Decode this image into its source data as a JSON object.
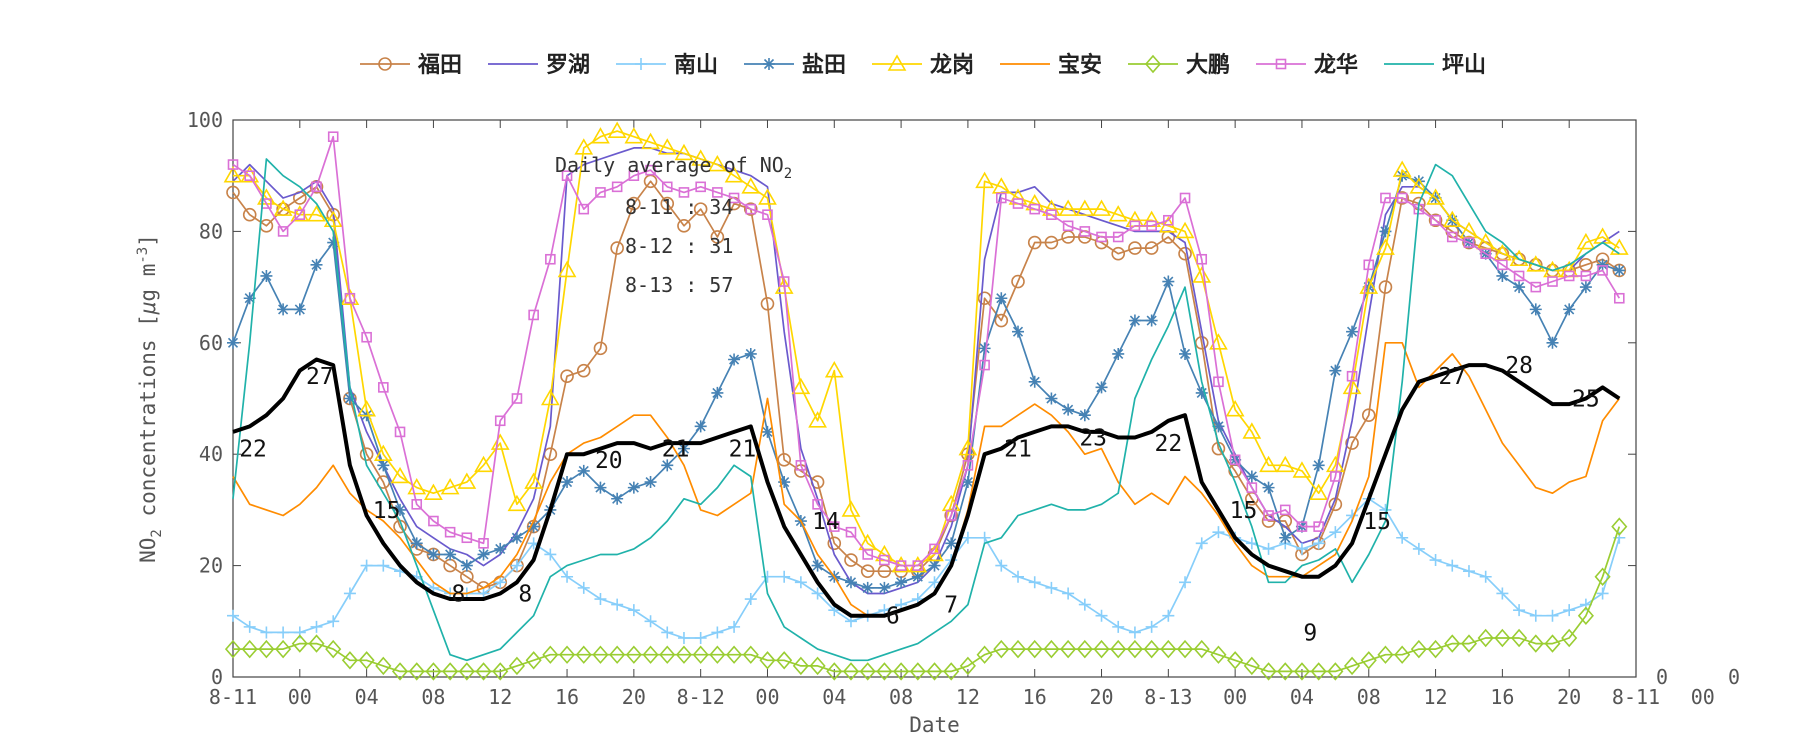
{
  "chart_data": {
    "type": "line",
    "xlabel": "Date",
    "ylabel_main": "NO",
    "ylabel_sub": "2",
    "ylabel_rest": " concentrations [",
    "ylabel_mu": "μ",
    "ylabel_unit": "g m",
    "ylabel_exp": "-3",
    "ylabel_close": "]",
    "ylim": [
      0,
      100
    ],
    "yticks": [
      0,
      20,
      40,
      60,
      80,
      100
    ],
    "xlim": [
      0,
      84
    ],
    "xticks": [
      {
        "x": 0,
        "label": "8-11"
      },
      {
        "x": 4,
        "label": "00"
      },
      {
        "x": 8,
        "label": "04"
      },
      {
        "x": 12,
        "label": "08"
      },
      {
        "x": 16,
        "label": "12"
      },
      {
        "x": 20,
        "label": "16"
      },
      {
        "x": 24,
        "label": "20"
      },
      {
        "x": 28,
        "label": "8-12"
      },
      {
        "x": 32,
        "label": "00"
      },
      {
        "x": 36,
        "label": "04"
      },
      {
        "x": 40,
        "label": "08"
      },
      {
        "x": 44,
        "label": "12"
      },
      {
        "x": 48,
        "label": "16"
      },
      {
        "x": 52,
        "label": "20"
      },
      {
        "x": 56,
        "label": "8-13"
      },
      {
        "x": 60,
        "label": "00"
      },
      {
        "x": 64,
        "label": "04"
      },
      {
        "x": 68,
        "label": "08"
      },
      {
        "x": 72,
        "label": "12"
      },
      {
        "x": 76,
        "label": "16"
      },
      {
        "x": 80,
        "label": "20"
      },
      {
        "x": 84,
        "label": "8-11"
      },
      {
        "x": 88,
        "label": "00"
      }
    ],
    "right_edge_labels": [
      "0",
      "0",
      "0"
    ],
    "annotation": {
      "title_main": "Daily average of NO",
      "title_sub": "2",
      "lines": [
        "8-11 : 34",
        "8-12 : 31",
        "8-13 : 57"
      ]
    },
    "average_labels": [
      {
        "x": 1.2,
        "y": 41,
        "text": "22"
      },
      {
        "x": 5.2,
        "y": 54,
        "text": "27"
      },
      {
        "x": 9.2,
        "y": 30,
        "text": "15"
      },
      {
        "x": 13.5,
        "y": 15,
        "text": "8"
      },
      {
        "x": 17.5,
        "y": 15,
        "text": "8"
      },
      {
        "x": 22.5,
        "y": 39,
        "text": "20"
      },
      {
        "x": 26.5,
        "y": 41,
        "text": "21"
      },
      {
        "x": 30.5,
        "y": 41,
        "text": "21"
      },
      {
        "x": 35.5,
        "y": 28,
        "text": "14"
      },
      {
        "x": 39.5,
        "y": 11,
        "text": "6"
      },
      {
        "x": 43,
        "y": 13,
        "text": "7"
      },
      {
        "x": 47,
        "y": 41,
        "text": "21"
      },
      {
        "x": 51.5,
        "y": 43,
        "text": "23"
      },
      {
        "x": 56,
        "y": 42,
        "text": "22"
      },
      {
        "x": 60.5,
        "y": 30,
        "text": "15"
      },
      {
        "x": 64.5,
        "y": 8,
        "text": "9"
      },
      {
        "x": 68.5,
        "y": 28,
        "text": "15"
      },
      {
        "x": 73,
        "y": 54,
        "text": "27"
      },
      {
        "x": 77,
        "y": 56,
        "text": "28"
      },
      {
        "x": 81,
        "y": 50,
        "text": "25"
      }
    ],
    "series": [
      {
        "name": "福田",
        "color": "#c8834a",
        "marker": "circle",
        "values": [
          87,
          83,
          81,
          84,
          86,
          88,
          83,
          50,
          40,
          35,
          27,
          23,
          22,
          20,
          18,
          16,
          17,
          20,
          27,
          40,
          54,
          55,
          59,
          77,
          85,
          89,
          85,
          81,
          84,
          79,
          85,
          84,
          67,
          39,
          37,
          35,
          24,
          21,
          19,
          19,
          19,
          19,
          22,
          29,
          40,
          68,
          64,
          71,
          78,
          78,
          79,
          79,
          78,
          76,
          77,
          77,
          79,
          76,
          60,
          41,
          37,
          32,
          28,
          28,
          22,
          24,
          31,
          42,
          47,
          70,
          86,
          85,
          82,
          80,
          78,
          77,
          76,
          75,
          74,
          73,
          73,
          74,
          75,
          73
        ]
      },
      {
        "name": "罗湖",
        "color": "#6a5acd",
        "marker": "none",
        "values": [
          89,
          92,
          89,
          86,
          87,
          89,
          84,
          52,
          44,
          38,
          32,
          27,
          25,
          23,
          22,
          20,
          22,
          26,
          32,
          45,
          90,
          92,
          93,
          94,
          95,
          95,
          94,
          94,
          93,
          92,
          91,
          90,
          88,
          62,
          41,
          32,
          22,
          17,
          15,
          15,
          16,
          17,
          20,
          27,
          38,
          75,
          87,
          87,
          88,
          85,
          84,
          83,
          82,
          81,
          80,
          80,
          80,
          78,
          62,
          46,
          40,
          34,
          29,
          27,
          24,
          25,
          32,
          46,
          65,
          83,
          88,
          88,
          86,
          82,
          80,
          78,
          76,
          75,
          74,
          73,
          73,
          76,
          78,
          80
        ]
      },
      {
        "name": "南山",
        "color": "#87cefa",
        "marker": "plus",
        "values": [
          11,
          9,
          8,
          8,
          8,
          9,
          10,
          15,
          20,
          20,
          19,
          18,
          16,
          15,
          15,
          15,
          17,
          20,
          24,
          22,
          18,
          16,
          14,
          13,
          12,
          10,
          8,
          7,
          7,
          8,
          9,
          14,
          18,
          18,
          17,
          15,
          12,
          10,
          11,
          12,
          13,
          14,
          17,
          21,
          25,
          25,
          20,
          18,
          17,
          16,
          15,
          13,
          11,
          9,
          8,
          9,
          11,
          17,
          24,
          26,
          25,
          24,
          23,
          24,
          23,
          24,
          26,
          29,
          32,
          30,
          25,
          23,
          21,
          20,
          19,
          18,
          15,
          12,
          11,
          11,
          12,
          13,
          15,
          25
        ]
      },
      {
        "name": "盐田",
        "color": "#4682b4",
        "marker": "star",
        "values": [
          60,
          68,
          72,
          66,
          66,
          74,
          78,
          50,
          47,
          38,
          30,
          24,
          22,
          22,
          20,
          22,
          23,
          25,
          27,
          30,
          35,
          37,
          34,
          32,
          34,
          35,
          38,
          41,
          45,
          51,
          57,
          58,
          44,
          35,
          28,
          20,
          18,
          17,
          16,
          16,
          17,
          18,
          20,
          24,
          35,
          59,
          68,
          62,
          53,
          50,
          48,
          47,
          52,
          58,
          64,
          64,
          71,
          58,
          51,
          45,
          39,
          36,
          34,
          25,
          27,
          38,
          55,
          62,
          70,
          80,
          90,
          89,
          86,
          82,
          78,
          76,
          72,
          70,
          66,
          60,
          66,
          70,
          74,
          73
        ]
      },
      {
        "name": "龙岗",
        "color": "#ffd700",
        "marker": "triangle",
        "values": [
          90,
          90,
          86,
          84,
          83,
          83,
          82,
          68,
          48,
          40,
          36,
          34,
          33,
          34,
          35,
          38,
          42,
          31,
          35,
          50,
          73,
          95,
          97,
          98,
          97,
          96,
          95,
          94,
          93,
          92,
          90,
          88,
          86,
          70,
          52,
          46,
          55,
          30,
          24,
          22,
          20,
          20,
          22,
          31,
          41,
          89,
          88,
          86,
          85,
          84,
          84,
          84,
          84,
          83,
          82,
          82,
          81,
          80,
          72,
          60,
          48,
          44,
          38,
          38,
          37,
          33,
          38,
          52,
          70,
          77,
          91,
          88,
          86,
          82,
          80,
          78,
          76,
          75,
          74,
          73,
          73,
          78,
          79,
          77
        ]
      },
      {
        "name": "宝安",
        "color": "#ff8c00",
        "marker": "none",
        "values": [
          36,
          31,
          30,
          29,
          31,
          34,
          38,
          33,
          30,
          28,
          25,
          21,
          17,
          15,
          15,
          16,
          18,
          22,
          28,
          35,
          40,
          42,
          43,
          45,
          47,
          47,
          43,
          38,
          30,
          29,
          31,
          33,
          50,
          31,
          28,
          22,
          18,
          13,
          11,
          11,
          12,
          13,
          15,
          20,
          30,
          45,
          45,
          47,
          49,
          47,
          44,
          40,
          41,
          35,
          31,
          33,
          31,
          36,
          33,
          29,
          24,
          20,
          18,
          18,
          18,
          20,
          22,
          28,
          36,
          60,
          60,
          52,
          55,
          58,
          54,
          48,
          42,
          38,
          34,
          33,
          35,
          36,
          46,
          50
        ]
      },
      {
        "name": "大鹏",
        "color": "#9acd32",
        "marker": "diamond",
        "values": [
          5,
          5,
          5,
          5,
          6,
          6,
          5,
          3,
          3,
          2,
          1,
          1,
          1,
          1,
          1,
          1,
          1,
          2,
          3,
          4,
          4,
          4,
          4,
          4,
          4,
          4,
          4,
          4,
          4,
          4,
          4,
          4,
          3,
          3,
          2,
          2,
          1,
          1,
          1,
          1,
          1,
          1,
          1,
          1,
          2,
          4,
          5,
          5,
          5,
          5,
          5,
          5,
          5,
          5,
          5,
          5,
          5,
          5,
          5,
          4,
          3,
          2,
          1,
          1,
          1,
          1,
          1,
          2,
          3,
          4,
          4,
          5,
          5,
          6,
          6,
          7,
          7,
          7,
          6,
          6,
          7,
          11,
          18,
          27
        ]
      },
      {
        "name": "龙华",
        "color": "#da70d6",
        "marker": "square",
        "values": [
          92,
          90,
          85,
          80,
          83,
          88,
          97,
          68,
          61,
          52,
          44,
          31,
          28,
          26,
          25,
          24,
          46,
          50,
          65,
          75,
          90,
          84,
          87,
          88,
          90,
          91,
          88,
          87,
          88,
          87,
          86,
          84,
          83,
          71,
          38,
          31,
          27,
          26,
          22,
          21,
          20,
          20,
          23,
          29,
          38,
          56,
          86,
          85,
          84,
          83,
          81,
          80,
          79,
          79,
          81,
          81,
          82,
          86,
          75,
          53,
          39,
          34,
          29,
          30,
          27,
          27,
          36,
          54,
          74,
          86,
          86,
          84,
          82,
          79,
          78,
          76,
          74,
          72,
          70,
          71,
          72,
          72,
          73,
          68
        ]
      },
      {
        "name": "坪山",
        "color": "#20b2aa",
        "marker": "none",
        "values": [
          32,
          60,
          93,
          90,
          88,
          85,
          80,
          52,
          38,
          33,
          28,
          20,
          12,
          4,
          3,
          4,
          5,
          8,
          11,
          18,
          20,
          21,
          22,
          22,
          23,
          25,
          28,
          32,
          31,
          34,
          38,
          36,
          15,
          9,
          7,
          5,
          4,
          3,
          3,
          4,
          5,
          6,
          8,
          10,
          13,
          24,
          25,
          29,
          30,
          31,
          30,
          30,
          31,
          33,
          50,
          57,
          63,
          70,
          53,
          42,
          35,
          27,
          17,
          17,
          20,
          21,
          23,
          17,
          22,
          28,
          53,
          85,
          92,
          90,
          85,
          80,
          78,
          75,
          74,
          73,
          74,
          76,
          78,
          76
        ]
      },
      {
        "name": "",
        "color": "#000000",
        "marker": "none",
        "thick": true,
        "values": [
          44,
          45,
          47,
          50,
          55,
          57,
          56,
          38,
          29,
          24,
          20,
          17,
          15,
          14,
          14,
          14,
          15,
          17,
          21,
          30,
          40,
          40,
          41,
          42,
          42,
          41,
          42,
          42,
          42,
          43,
          44,
          45,
          35,
          27,
          22,
          17,
          13,
          11,
          11,
          11,
          12,
          13,
          15,
          20,
          29,
          40,
          41,
          43,
          44,
          45,
          45,
          44,
          44,
          43,
          43,
          44,
          46,
          47,
          35,
          30,
          25,
          22,
          20,
          19,
          18,
          18,
          20,
          24,
          32,
          40,
          48,
          53,
          54,
          55,
          56,
          56,
          55,
          53,
          51,
          49,
          49,
          50,
          52,
          50
        ]
      }
    ]
  }
}
